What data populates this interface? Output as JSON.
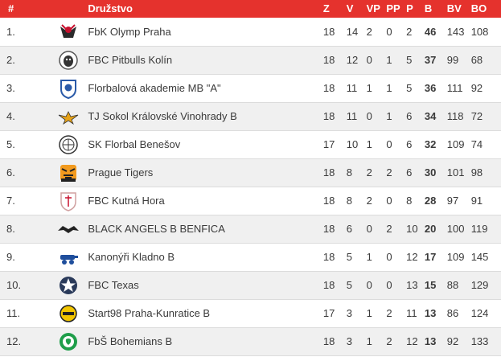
{
  "table": {
    "headers": {
      "rank": "#",
      "team": "Družstvo",
      "games": "Z",
      "wins": "V",
      "ot_wins": "VP",
      "ot_losses": "PP",
      "losses": "P",
      "points": "B",
      "goals_for": "BV",
      "goals_against": "BO"
    },
    "rows": [
      {
        "rank": "1.",
        "team": "FbK Olymp Praha",
        "logo": "olymp-logo",
        "games": "18",
        "wins": "14",
        "ot_wins": "2",
        "ot_losses": "0",
        "losses": "2",
        "points": "46",
        "goals_for": "143",
        "goals_against": "108"
      },
      {
        "rank": "2.",
        "team": "FBC Pitbulls Kolín",
        "logo": "pitbulls-logo",
        "games": "18",
        "wins": "12",
        "ot_wins": "0",
        "ot_losses": "1",
        "losses": "5",
        "points": "37",
        "goals_for": "99",
        "goals_against": "68"
      },
      {
        "rank": "3.",
        "team": "Florbalová akademie MB \"A\"",
        "logo": "mb-logo",
        "games": "18",
        "wins": "11",
        "ot_wins": "1",
        "ot_losses": "1",
        "losses": "5",
        "points": "36",
        "goals_for": "111",
        "goals_against": "92"
      },
      {
        "rank": "4.",
        "team": "TJ Sokol Královské Vinohrady B",
        "logo": "sokol-logo",
        "games": "18",
        "wins": "11",
        "ot_wins": "0",
        "ot_losses": "1",
        "losses": "6",
        "points": "34",
        "goals_for": "118",
        "goals_against": "72"
      },
      {
        "rank": "5.",
        "team": "SK Florbal Benešov",
        "logo": "benesov-logo",
        "games": "17",
        "wins": "10",
        "ot_wins": "1",
        "ot_losses": "0",
        "losses": "6",
        "points": "32",
        "goals_for": "109",
        "goals_against": "74"
      },
      {
        "rank": "6.",
        "team": "Prague Tigers",
        "logo": "tigers-logo",
        "games": "18",
        "wins": "8",
        "ot_wins": "2",
        "ot_losses": "2",
        "losses": "6",
        "points": "30",
        "goals_for": "101",
        "goals_against": "98"
      },
      {
        "rank": "7.",
        "team": "FBC Kutná Hora",
        "logo": "kutnahora-logo",
        "games": "18",
        "wins": "8",
        "ot_wins": "2",
        "ot_losses": "0",
        "losses": "8",
        "points": "28",
        "goals_for": "97",
        "goals_against": "91"
      },
      {
        "rank": "8.",
        "team": "BLACK ANGELS B BENFICA",
        "logo": "blackangels-logo",
        "games": "18",
        "wins": "6",
        "ot_wins": "0",
        "ot_losses": "2",
        "losses": "10",
        "points": "20",
        "goals_for": "100",
        "goals_against": "119"
      },
      {
        "rank": "9.",
        "team": "Kanonýři Kladno B",
        "logo": "kladno-logo",
        "games": "18",
        "wins": "5",
        "ot_wins": "1",
        "ot_losses": "0",
        "losses": "12",
        "points": "17",
        "goals_for": "109",
        "goals_against": "145"
      },
      {
        "rank": "10.",
        "team": "FBC Texas",
        "logo": "texas-logo",
        "games": "18",
        "wins": "5",
        "ot_wins": "0",
        "ot_losses": "0",
        "losses": "13",
        "points": "15",
        "goals_for": "88",
        "goals_against": "129"
      },
      {
        "rank": "11.",
        "team": "Start98 Praha-Kunratice B",
        "logo": "start98-logo",
        "games": "17",
        "wins": "3",
        "ot_wins": "1",
        "ot_losses": "2",
        "losses": "11",
        "points": "13",
        "goals_for": "86",
        "goals_against": "124"
      },
      {
        "rank": "12.",
        "team": "FbŠ Bohemians B",
        "logo": "bohemians-logo",
        "games": "18",
        "wins": "3",
        "ot_wins": "1",
        "ot_losses": "2",
        "losses": "12",
        "points": "13",
        "goals_for": "92",
        "goals_against": "133"
      }
    ]
  },
  "colors": {
    "header_bg": "#e5322d",
    "header_text": "#ffffff",
    "row_alt_bg": "#f0f0f0",
    "text": "#3a3a3a"
  }
}
